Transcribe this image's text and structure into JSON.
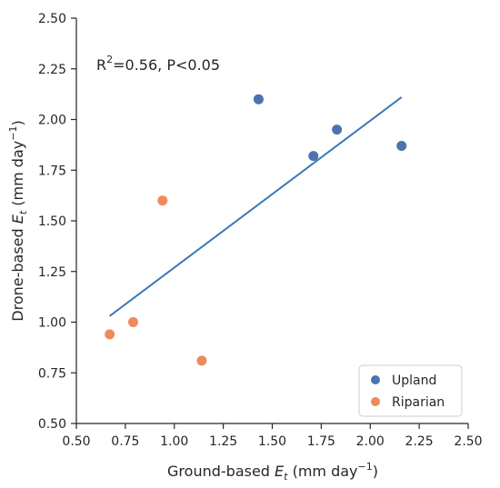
{
  "chart_data": {
    "type": "scatter",
    "xlabel": {
      "main": "Ground-based ",
      "var": "E",
      "sub": "t",
      "unit": " (mm day",
      "exp": "−1",
      "close": ")"
    },
    "ylabel": {
      "main": "Drone-based ",
      "var": "E",
      "sub": "t",
      "unit": " (mm day",
      "exp": "−1",
      "close": ")"
    },
    "xlim": [
      0.5,
      2.5
    ],
    "ylim": [
      0.5,
      2.5
    ],
    "xticks": [
      "0.50",
      "0.75",
      "1.00",
      "1.25",
      "1.50",
      "1.75",
      "2.00",
      "2.25",
      "2.50"
    ],
    "yticks": [
      "0.50",
      "0.75",
      "1.00",
      "1.25",
      "1.50",
      "1.75",
      "2.00",
      "2.25",
      "2.50"
    ],
    "annotation": {
      "r_prefix": "R",
      "r_exp": "2",
      "text": "=0.56, P<0.05"
    },
    "series": [
      {
        "name": "Upland",
        "color": "#4c72b0",
        "points": [
          [
            1.43,
            2.1
          ],
          [
            1.71,
            1.82
          ],
          [
            1.83,
            1.95
          ],
          [
            2.16,
            1.87
          ]
        ]
      },
      {
        "name": "Riparian",
        "color": "#f08a5d",
        "points": [
          [
            0.67,
            0.94
          ],
          [
            0.79,
            1.0
          ],
          [
            0.94,
            1.6
          ],
          [
            1.14,
            0.81
          ]
        ]
      }
    ],
    "fit_line": {
      "color": "#3a78b5",
      "x": [
        0.67,
        2.16
      ],
      "y": [
        1.03,
        2.11
      ]
    },
    "grid": false,
    "legend_position": "bottom-right"
  }
}
